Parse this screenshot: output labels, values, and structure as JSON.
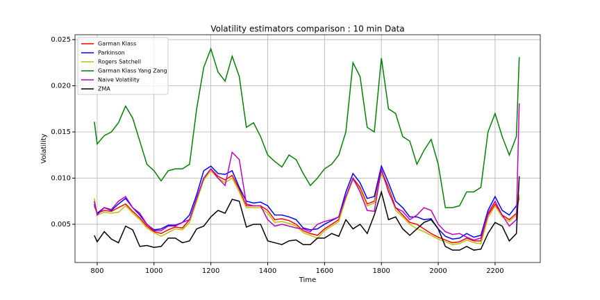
{
  "chart_data": {
    "type": "line",
    "title": "Volatility estimators comparison : 10 min Data",
    "xlabel": "Time",
    "ylabel": "Volatility",
    "x": [
      790,
      800,
      825,
      850,
      875,
      900,
      925,
      950,
      975,
      1000,
      1025,
      1050,
      1075,
      1100,
      1125,
      1150,
      1175,
      1200,
      1225,
      1250,
      1275,
      1300,
      1325,
      1350,
      1375,
      1400,
      1425,
      1450,
      1475,
      1500,
      1525,
      1550,
      1575,
      1600,
      1625,
      1650,
      1675,
      1700,
      1725,
      1750,
      1775,
      1800,
      1825,
      1850,
      1875,
      1900,
      1925,
      1950,
      1975,
      2000,
      2025,
      2050,
      2075,
      2100,
      2125,
      2150,
      2175,
      2200,
      2225,
      2250,
      2275,
      2285
    ],
    "series": [
      {
        "name": "Garman Klass",
        "color": "#ff0000",
        "values": [
          0.007,
          0.0062,
          0.0065,
          0.0064,
          0.0068,
          0.0072,
          0.0064,
          0.0057,
          0.0048,
          0.0042,
          0.004,
          0.0044,
          0.0047,
          0.0046,
          0.0055,
          0.0078,
          0.01,
          0.011,
          0.0102,
          0.0098,
          0.0103,
          0.0088,
          0.007,
          0.007,
          0.007,
          0.0065,
          0.0055,
          0.0056,
          0.0054,
          0.005,
          0.0043,
          0.004,
          0.0038,
          0.0045,
          0.005,
          0.0055,
          0.008,
          0.01,
          0.009,
          0.0072,
          0.0075,
          0.0108,
          0.009,
          0.0068,
          0.006,
          0.0052,
          0.005,
          0.0045,
          0.004,
          0.0036,
          0.0033,
          0.003,
          0.0031,
          0.0035,
          0.0032,
          0.0032,
          0.006,
          0.0072,
          0.006,
          0.0055,
          0.0062,
          0.008
        ]
      },
      {
        "name": "Parkinson",
        "color": "#0000ff",
        "values": [
          0.0072,
          0.0062,
          0.0068,
          0.0065,
          0.0072,
          0.0078,
          0.0068,
          0.006,
          0.005,
          0.0044,
          0.0045,
          0.0049,
          0.0049,
          0.0052,
          0.006,
          0.0082,
          0.0108,
          0.0113,
          0.0105,
          0.0104,
          0.0108,
          0.009,
          0.0075,
          0.0073,
          0.0074,
          0.007,
          0.006,
          0.006,
          0.0058,
          0.0055,
          0.0046,
          0.0044,
          0.0045,
          0.005,
          0.0054,
          0.0058,
          0.0085,
          0.0105,
          0.0095,
          0.0078,
          0.008,
          0.0113,
          0.0095,
          0.0075,
          0.0068,
          0.0058,
          0.0058,
          0.0055,
          0.0056,
          0.0045,
          0.0037,
          0.0034,
          0.0035,
          0.004,
          0.0036,
          0.0038,
          0.0065,
          0.008,
          0.0065,
          0.006,
          0.007,
          0.0078
        ]
      },
      {
        "name": "Rogers Satchell",
        "color": "#bfbf00",
        "values": [
          0.0078,
          0.006,
          0.0063,
          0.0062,
          0.0063,
          0.007,
          0.0062,
          0.0055,
          0.0046,
          0.0041,
          0.0037,
          0.0041,
          0.0045,
          0.0044,
          0.0052,
          0.0075,
          0.0098,
          0.0108,
          0.01,
          0.0095,
          0.01,
          0.0085,
          0.0068,
          0.0068,
          0.0068,
          0.0062,
          0.0052,
          0.0053,
          0.0051,
          0.0048,
          0.0041,
          0.0038,
          0.0035,
          0.0043,
          0.0048,
          0.0053,
          0.0078,
          0.0098,
          0.0088,
          0.007,
          0.0073,
          0.0105,
          0.0088,
          0.0065,
          0.0058,
          0.005,
          0.0045,
          0.0042,
          0.0038,
          0.0034,
          0.0031,
          0.0028,
          0.0029,
          0.0033,
          0.003,
          0.0029,
          0.0057,
          0.007,
          0.0058,
          0.0053,
          0.006,
          0.0082
        ]
      },
      {
        "name": "Garman Klass Yang Zang",
        "color": "#008000",
        "values": [
          0.0161,
          0.0137,
          0.0146,
          0.015,
          0.016,
          0.0178,
          0.0165,
          0.014,
          0.0115,
          0.0108,
          0.0097,
          0.0108,
          0.011,
          0.011,
          0.0115,
          0.0175,
          0.022,
          0.024,
          0.0215,
          0.0205,
          0.0232,
          0.021,
          0.0155,
          0.016,
          0.0145,
          0.0125,
          0.0118,
          0.0112,
          0.0125,
          0.012,
          0.0105,
          0.0092,
          0.01,
          0.011,
          0.0115,
          0.0125,
          0.015,
          0.0225,
          0.021,
          0.0155,
          0.015,
          0.023,
          0.0175,
          0.017,
          0.0145,
          0.014,
          0.0115,
          0.013,
          0.0142,
          0.0115,
          0.0068,
          0.0068,
          0.007,
          0.0085,
          0.0085,
          0.009,
          0.015,
          0.017,
          0.0145,
          0.0125,
          0.0145,
          0.0231
        ]
      },
      {
        "name": "Naive Volatility",
        "color": "#bf00bf",
        "values": [
          0.0075,
          0.006,
          0.0068,
          0.0066,
          0.0075,
          0.008,
          0.0068,
          0.0062,
          0.005,
          0.0043,
          0.0043,
          0.0048,
          0.0048,
          0.0052,
          0.0055,
          0.0078,
          0.01,
          0.011,
          0.01,
          0.0092,
          0.0128,
          0.012,
          0.0072,
          0.007,
          0.007,
          0.0055,
          0.0048,
          0.005,
          0.0048,
          0.0046,
          0.0045,
          0.0042,
          0.005,
          0.0053,
          0.0055,
          0.0058,
          0.008,
          0.01,
          0.0085,
          0.0065,
          0.0064,
          0.011,
          0.0085,
          0.0068,
          0.0064,
          0.0055,
          0.006,
          0.0068,
          0.0065,
          0.005,
          0.0042,
          0.0039,
          0.004,
          0.0036,
          0.0033,
          0.0035,
          0.0062,
          0.0075,
          0.006,
          0.0048,
          0.0055,
          0.0181
        ]
      },
      {
        "name": "ZMA",
        "color": "#000000",
        "values": [
          0.0038,
          0.0031,
          0.0042,
          0.0034,
          0.003,
          0.0048,
          0.0044,
          0.0026,
          0.0027,
          0.0025,
          0.0026,
          0.0035,
          0.0035,
          0.003,
          0.0032,
          0.0045,
          0.0048,
          0.0058,
          0.0065,
          0.0062,
          0.0077,
          0.0075,
          0.0047,
          0.005,
          0.005,
          0.0032,
          0.003,
          0.0028,
          0.0032,
          0.0033,
          0.0028,
          0.0028,
          0.0035,
          0.0035,
          0.004,
          0.0037,
          0.0055,
          0.0045,
          0.005,
          0.004,
          0.006,
          0.0085,
          0.0055,
          0.0058,
          0.0045,
          0.0038,
          0.0045,
          0.0052,
          0.0055,
          0.0045,
          0.0026,
          0.0022,
          0.0022,
          0.0026,
          0.0022,
          0.0023,
          0.004,
          0.0052,
          0.0048,
          0.0032,
          0.004,
          0.0102
        ]
      }
    ],
    "xlim": [
      722,
      2359
    ],
    "ylim": [
      0.00086,
      0.02553
    ],
    "xticks": [
      800,
      1000,
      1200,
      1400,
      1600,
      1800,
      2000,
      2200
    ],
    "yticks": [
      {
        "value": 0.005,
        "label": "0.005"
      },
      {
        "value": 0.01,
        "label": "0.010"
      },
      {
        "value": 0.015,
        "label": "0.015"
      },
      {
        "value": 0.02,
        "label": "0.020"
      },
      {
        "value": 0.025,
        "label": "0.025"
      }
    ],
    "grid": true,
    "legend": "upper left"
  }
}
